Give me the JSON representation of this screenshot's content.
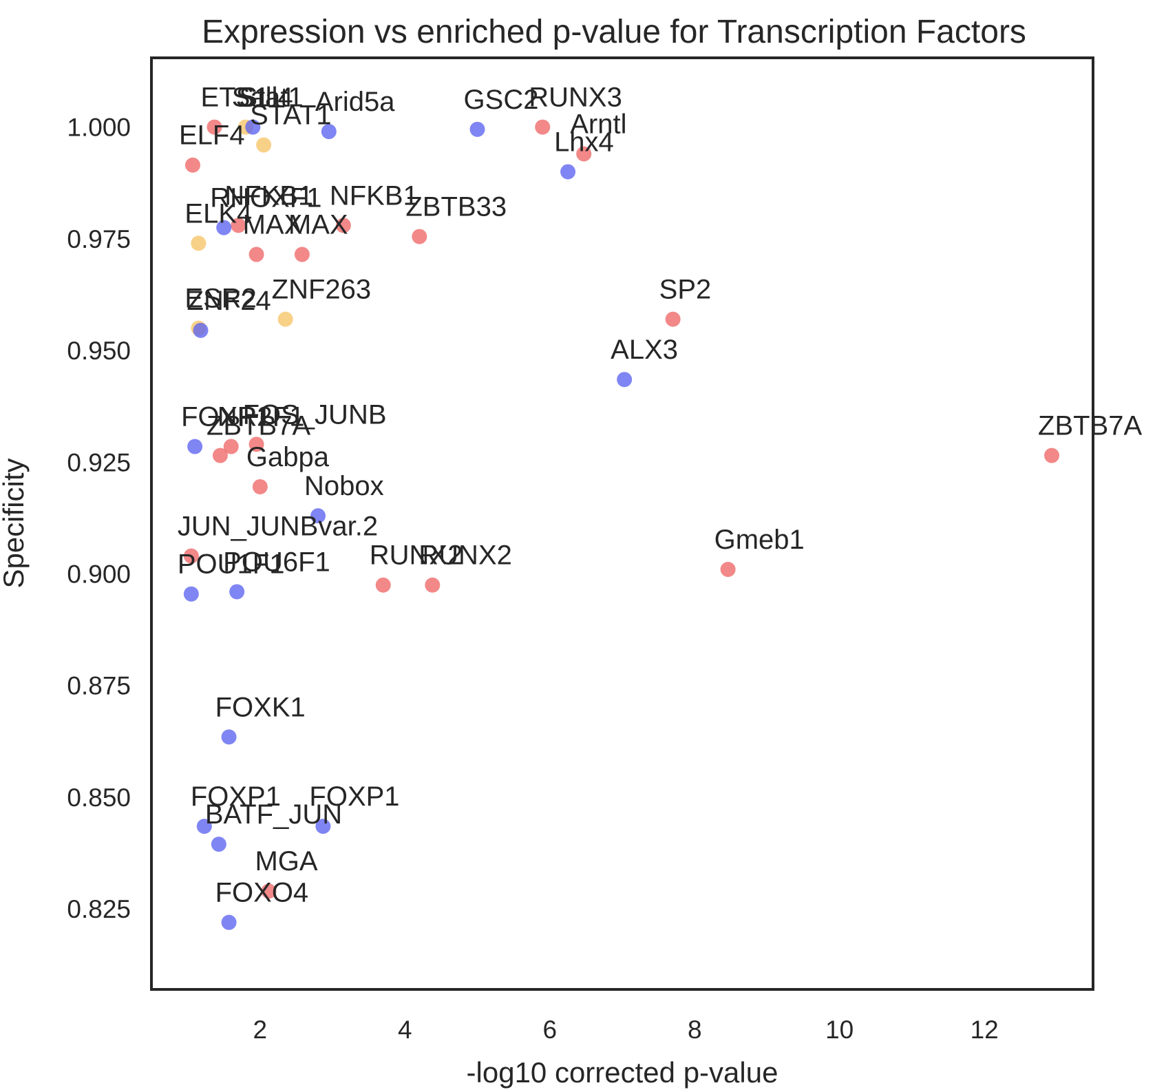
{
  "chart_data": {
    "type": "scatter",
    "title": "Expression vs enriched p-value for Transcription Factors",
    "xlabel": "-log10 corrected p-value",
    "ylabel": "Specificity",
    "xlim": [
      0.5,
      13.5
    ],
    "ylim": [
      0.807,
      1.0155
    ],
    "xticks": [
      2,
      4,
      6,
      8,
      10,
      12
    ],
    "yticks": [
      0.825,
      0.85,
      0.875,
      0.9,
      0.925,
      0.95,
      0.975,
      1.0
    ],
    "ytick_labels": [
      "0.825",
      "0.850",
      "0.875",
      "0.900",
      "0.925",
      "0.950",
      "0.975",
      "1.000"
    ],
    "grid": false,
    "legend": "none",
    "colors": {
      "red": "#ee6666",
      "blue": "#5b63f0",
      "yellow": "#f6c468"
    },
    "points": [
      {
        "label": "ETS1",
        "x": 1.37,
        "y": 1.0,
        "color": "red"
      },
      {
        "label": "Sall4",
        "x": 1.8,
        "y": 1.0,
        "color": "yellow"
      },
      {
        "label": "Stat1",
        "x": 1.9,
        "y": 1.0,
        "color": "blue"
      },
      {
        "label": "STAT1",
        "x": 2.05,
        "y": 0.996,
        "color": "yellow"
      },
      {
        "label": "Arid5a",
        "x": 2.95,
        "y": 0.999,
        "color": "blue"
      },
      {
        "label": "ELF4",
        "x": 1.07,
        "y": 0.9915,
        "color": "red"
      },
      {
        "label": "GSC2",
        "x": 5.0,
        "y": 0.9995,
        "color": "blue"
      },
      {
        "label": "RUNX3",
        "x": 5.9,
        "y": 1.0,
        "color": "red"
      },
      {
        "label": "Arntl",
        "x": 6.47,
        "y": 0.994,
        "color": "red"
      },
      {
        "label": "Lhx4",
        "x": 6.25,
        "y": 0.99,
        "color": "blue"
      },
      {
        "label": "NFKB1",
        "x": 1.7,
        "y": 0.978,
        "color": "red"
      },
      {
        "label": "RHOXF1",
        "x": 1.5,
        "y": 0.9775,
        "color": "blue"
      },
      {
        "label": "NFKB1",
        "x": 3.15,
        "y": 0.978,
        "color": "red"
      },
      {
        "label": "ZBTB33",
        "x": 4.2,
        "y": 0.9755,
        "color": "red"
      },
      {
        "label": "ELK4",
        "x": 1.15,
        "y": 0.974,
        "color": "yellow"
      },
      {
        "label": "MAX",
        "x": 1.95,
        "y": 0.9715,
        "color": "red"
      },
      {
        "label": "MAX",
        "x": 2.58,
        "y": 0.9715,
        "color": "red"
      },
      {
        "label": "ZNF263",
        "x": 2.35,
        "y": 0.957,
        "color": "yellow"
      },
      {
        "label": "ESR2",
        "x": 1.15,
        "y": 0.955,
        "color": "yellow"
      },
      {
        "label": "ZNF24",
        "x": 1.18,
        "y": 0.9545,
        "color": "blue"
      },
      {
        "label": "SP2",
        "x": 7.7,
        "y": 0.957,
        "color": "red"
      },
      {
        "label": "ALX3",
        "x": 7.03,
        "y": 0.9435,
        "color": "blue"
      },
      {
        "label": "ZBTB7A",
        "x": 12.93,
        "y": 0.9265,
        "color": "red"
      },
      {
        "label": "FOXP1",
        "x": 1.1,
        "y": 0.9285,
        "color": "blue"
      },
      {
        "label": "NR2F1",
        "x": 1.6,
        "y": 0.9285,
        "color": "red"
      },
      {
        "label": "FOS_JUNB",
        "x": 1.95,
        "y": 0.929,
        "color": "red"
      },
      {
        "label": "ZBTB7A",
        "x": 1.45,
        "y": 0.9265,
        "color": "red"
      },
      {
        "label": "Gabpa",
        "x": 2.0,
        "y": 0.9195,
        "color": "red"
      },
      {
        "label": "Nobox",
        "x": 2.8,
        "y": 0.913,
        "color": "blue"
      },
      {
        "label": "JUN_JUNBvar.2",
        "x": 1.05,
        "y": 0.904,
        "color": "red"
      },
      {
        "label": "POU1F1",
        "x": 1.05,
        "y": 0.8955,
        "color": "blue"
      },
      {
        "label": "POU6F1",
        "x": 1.68,
        "y": 0.896,
        "color": "blue"
      },
      {
        "label": "RUNX2",
        "x": 3.7,
        "y": 0.8975,
        "color": "red"
      },
      {
        "label": "RUNX2",
        "x": 4.38,
        "y": 0.8975,
        "color": "red"
      },
      {
        "label": "Gmeb1",
        "x": 8.46,
        "y": 0.901,
        "color": "red"
      },
      {
        "label": "FOXK1",
        "x": 1.57,
        "y": 0.8635,
        "color": "blue"
      },
      {
        "label": "FOXP1",
        "x": 1.23,
        "y": 0.8435,
        "color": "blue"
      },
      {
        "label": "FOXP1",
        "x": 2.87,
        "y": 0.8435,
        "color": "blue"
      },
      {
        "label": "BATF_JUN",
        "x": 1.43,
        "y": 0.8395,
        "color": "blue"
      },
      {
        "label": "MGA",
        "x": 2.12,
        "y": 0.829,
        "color": "red"
      },
      {
        "label": "FOXO4",
        "x": 1.57,
        "y": 0.822,
        "color": "blue"
      }
    ]
  }
}
